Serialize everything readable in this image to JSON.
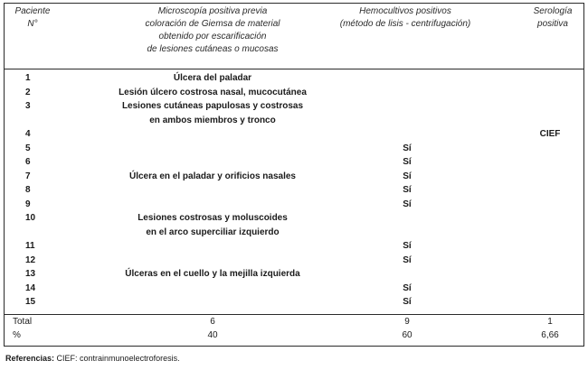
{
  "headers": {
    "col1": [
      "Paciente",
      "N°"
    ],
    "col2": [
      "Microscopía positiva previa",
      "coloración de Giemsa de material",
      "obtenido por escarificación",
      "de lesiones cutáneas o mucosas"
    ],
    "col3": [
      "Hemocultivos positivos",
      "(método de lisis - centrifugación)"
    ],
    "col4": [
      "Serología",
      "positiva"
    ]
  },
  "rows": [
    {
      "n": "1",
      "micro": [
        "Úlcera del paladar"
      ],
      "hemo": "",
      "sero": ""
    },
    {
      "n": "2",
      "micro": [
        "Lesión úlcero costrosa nasal, mucocutánea"
      ],
      "hemo": "",
      "sero": ""
    },
    {
      "n": "3",
      "micro": [
        "Lesiones cutáneas papulosas y costrosas",
        "en ambos miembros y tronco"
      ],
      "hemo": "",
      "sero": ""
    },
    {
      "n": "4",
      "micro": [],
      "hemo": "",
      "sero": "CIEF"
    },
    {
      "n": "5",
      "micro": [],
      "hemo": "Sí",
      "sero": ""
    },
    {
      "n": "6",
      "micro": [],
      "hemo": "Sí",
      "sero": ""
    },
    {
      "n": "7",
      "micro": [
        "Úlcera en el paladar y orificios nasales"
      ],
      "hemo": "Sí",
      "sero": ""
    },
    {
      "n": "8",
      "micro": [],
      "hemo": "Sí",
      "sero": ""
    },
    {
      "n": "9",
      "micro": [],
      "hemo": "Sí",
      "sero": ""
    },
    {
      "n": "10",
      "micro": [
        "Lesiones costrosas y moluscoides",
        "en el arco superciliar izquierdo"
      ],
      "hemo": "",
      "sero": ""
    },
    {
      "n": "11",
      "micro": [],
      "hemo": "Sí",
      "sero": ""
    },
    {
      "n": "12",
      "micro": [],
      "hemo": "Sí",
      "sero": ""
    },
    {
      "n": "13",
      "micro": [
        "Úlceras en el cuello y la mejilla izquierda"
      ],
      "hemo": "",
      "sero": ""
    },
    {
      "n": "14",
      "micro": [],
      "hemo": "Sí",
      "sero": ""
    },
    {
      "n": "15",
      "micro": [],
      "hemo": "Sí",
      "sero": ""
    }
  ],
  "totals": [
    {
      "label": "Total",
      "micro": "6",
      "hemo": "9",
      "sero": "1"
    },
    {
      "label": "%",
      "micro": "40",
      "hemo": "60",
      "sero": "6,66"
    }
  ],
  "footnote": {
    "label": "Referencias:",
    "text": " CIEF: contrainmunoelectroforesis."
  }
}
